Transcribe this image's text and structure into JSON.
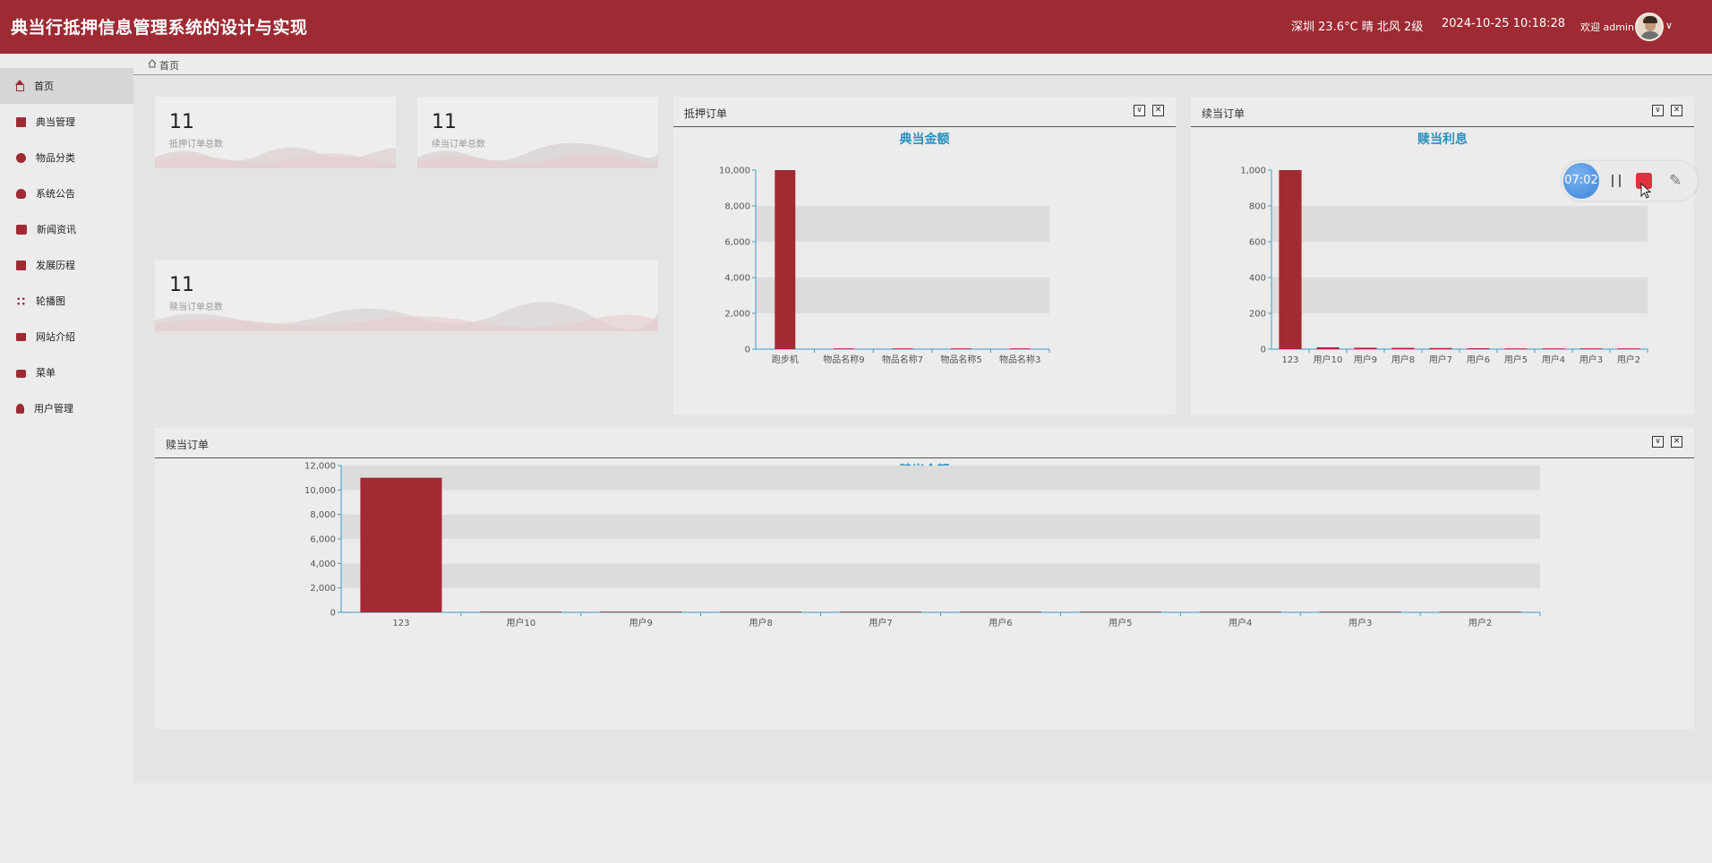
{
  "header": {
    "title": "典当行抵押信息管理系统的设计与实现",
    "weather": "深圳 23.6°C 晴 北风 2级",
    "datetime": "2024-10-25 10:18:28",
    "welcome": "欢迎 admin"
  },
  "sidebar": {
    "items": [
      {
        "label": "首页",
        "icon": "home-icon",
        "active": true
      },
      {
        "label": "典当管理",
        "icon": "book-icon"
      },
      {
        "label": "物品分类",
        "icon": "category-icon"
      },
      {
        "label": "系统公告",
        "icon": "bell-icon"
      },
      {
        "label": "新闻资讯",
        "icon": "news-icon"
      },
      {
        "label": "发展历程",
        "icon": "picture-icon"
      },
      {
        "label": "轮播图",
        "icon": "grid-icon"
      },
      {
        "label": "网站介绍",
        "icon": "website-icon"
      },
      {
        "label": "菜单",
        "icon": "bag-icon"
      },
      {
        "label": "用户管理",
        "icon": "user-icon"
      }
    ]
  },
  "breadcrumb": {
    "label": "首页"
  },
  "stats": [
    {
      "value": "11",
      "label": "抵押订单总数"
    },
    {
      "value": "11",
      "label": "续当订单总数"
    },
    {
      "value": "11",
      "label": "赎当订单总数"
    }
  ],
  "panels": {
    "mortgage": {
      "title": "抵押订单"
    },
    "renewal": {
      "title": "续当订单"
    },
    "redeem": {
      "title": "赎当订单"
    }
  },
  "recorder": {
    "timer": "07:02"
  },
  "colors": {
    "brand": "#9e2a33",
    "chart_title": "#2b8fbd",
    "bar": "#a12a33"
  },
  "chart_data": [
    {
      "type": "bar",
      "title": "典当金额",
      "categories": [
        "跑步机",
        "物品名称9",
        "物品名称7",
        "物品名称5",
        "物品名称3"
      ],
      "values": [
        10000,
        0,
        0,
        0,
        0
      ],
      "yticks": [
        "0",
        "2,000",
        "4,000",
        "6,000",
        "8,000",
        "10,000"
      ],
      "ylim": [
        0,
        10000
      ]
    },
    {
      "type": "bar",
      "title": "赎当利息",
      "categories": [
        "123",
        "用户10",
        "用户9",
        "用户8",
        "用户7",
        "用户6",
        "用户5",
        "用户4",
        "用户3",
        "用户2"
      ],
      "values": [
        1000,
        10,
        8,
        7,
        6,
        5,
        4,
        3,
        2,
        1
      ],
      "yticks": [
        "0",
        "200",
        "400",
        "600",
        "800",
        "1,000"
      ],
      "ylim": [
        0,
        1000
      ]
    },
    {
      "type": "bar",
      "title": "赎当金额",
      "categories": [
        "123",
        "用户10",
        "用户9",
        "用户8",
        "用户7",
        "用户6",
        "用户5",
        "用户4",
        "用户3",
        "用户2"
      ],
      "values": [
        11000,
        0,
        0,
        0,
        0,
        0,
        0,
        0,
        0,
        0
      ],
      "yticks": [
        "0",
        "2,000",
        "4,000",
        "6,000",
        "8,000",
        "10,000",
        "12,000"
      ],
      "ylim": [
        0,
        12000
      ]
    }
  ]
}
